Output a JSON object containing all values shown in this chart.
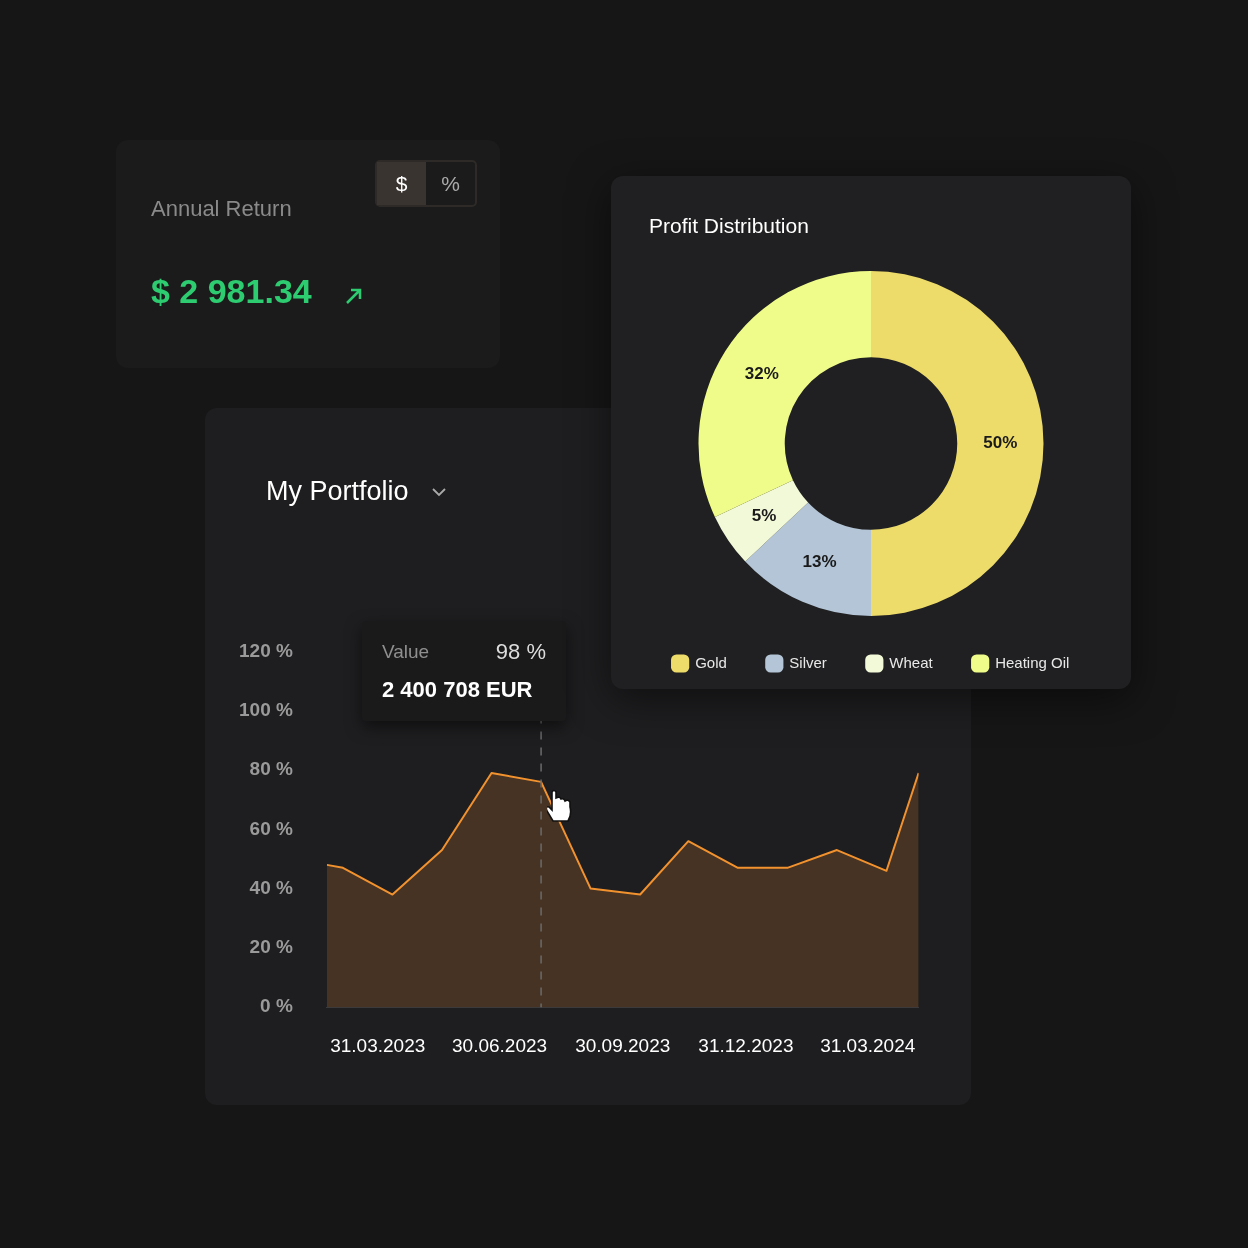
{
  "chart_data": [
    {
      "type": "other",
      "title": "Annual Return",
      "annotations": [
        "$ 2 981.34",
        "$",
        "%"
      ]
    },
    {
      "type": "area",
      "title": "My Portfolio",
      "x": [
        "2023-02-21",
        "2023-03-05",
        "2023-04-11",
        "2023-05-18",
        "2023-06-24",
        "2023-07-31",
        "2023-09-06",
        "2023-10-13",
        "2023-11-18",
        "2023-12-25",
        "2024-01-31",
        "2024-03-08",
        "2024-04-14",
        "2024-05-08"
      ],
      "series": [
        {
          "color": "#f2922f",
          "values": [
            48,
            47,
            38,
            53,
            79,
            76,
            40,
            38,
            56,
            47,
            47,
            53,
            46,
            79
          ]
        }
      ],
      "xlim": [
        "2023-02-21",
        "2024-05-08"
      ],
      "xticks": [
        {
          "value": "2023-03-31",
          "label": "31.03.2023"
        },
        {
          "value": "2023-06-30",
          "label": "30.06.2023"
        },
        {
          "value": "2023-09-30",
          "label": "30.09.2023"
        },
        {
          "value": "2023-12-31",
          "label": "31.12.2023"
        },
        {
          "value": "2024-03-31",
          "label": "31.03.2024"
        }
      ],
      "ylim": [
        0,
        120
      ],
      "yticks": [
        {
          "value": 0,
          "label": "0 %"
        },
        {
          "value": 20,
          "label": "20 %"
        },
        {
          "value": 40,
          "label": "40 %"
        },
        {
          "value": 60,
          "label": "60 %"
        },
        {
          "value": 80,
          "label": "80 %"
        },
        {
          "value": 100,
          "label": "100 %"
        },
        {
          "value": 120,
          "label": "120 %"
        }
      ],
      "grid": false,
      "legend": false,
      "ref_lines": [
        {
          "axis": "x",
          "value": "2023-07-31",
          "color": "#6b6b6b",
          "line_style": "dashed"
        }
      ],
      "annotations": [
        "Value",
        "98 %",
        "2 400 708 EUR"
      ]
    },
    {
      "type": "donut",
      "title": "Profit Distribution",
      "categories": [
        "Gold",
        "Silver",
        "Wheat",
        "Heating Oil"
      ],
      "values": [
        50,
        13,
        5,
        32
      ],
      "colors": [
        "#eedc6a",
        "#b3c5d6",
        "#f2f9d8",
        "#f0fc8a"
      ],
      "value_labels": [
        "50%",
        "13%",
        "5%",
        "32%"
      ],
      "legend": "bottom"
    }
  ]
}
